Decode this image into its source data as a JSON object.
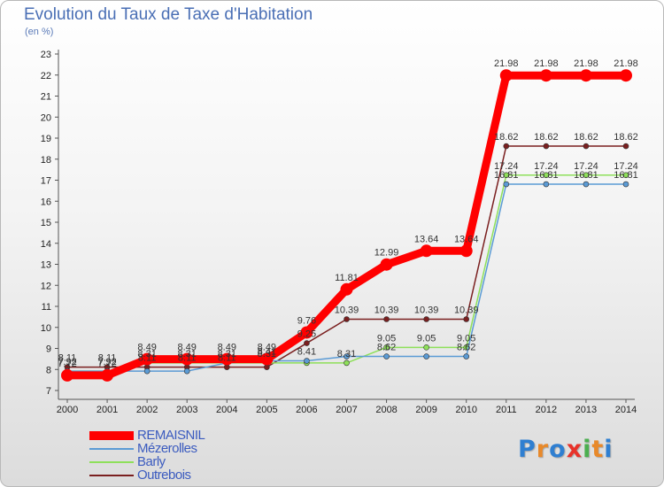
{
  "header": {
    "title": "Evolution du Taux de Taxe d'Habitation",
    "subtitle": "(en %)"
  },
  "chart_data": {
    "type": "line",
    "title": "Evolution du Taux de Taxe d'Habitation",
    "ylabel": "(en %)",
    "xlabel": "",
    "x": [
      "2000",
      "2001",
      "2002",
      "2003",
      "2004",
      "2005",
      "2006",
      "2007",
      "2008",
      "2009",
      "2010",
      "2011",
      "2012",
      "2013",
      "2014"
    ],
    "ylim": [
      7,
      23
    ],
    "yticks": [
      7,
      8,
      9,
      10,
      11,
      12,
      13,
      14,
      15,
      16,
      17,
      18,
      19,
      20,
      21,
      22,
      23
    ],
    "grid": false,
    "legend_position": "bottom-left",
    "series": [
      {
        "name": "REMAISNIL",
        "color": "#ff0000",
        "values": [
          7.72,
          7.72,
          8.49,
          8.49,
          8.49,
          8.49,
          9.76,
          11.81,
          12.99,
          13.64,
          13.64,
          21.98,
          21.98,
          21.98,
          21.98
        ]
      },
      {
        "name": "Mézerolles",
        "color": "#5b9bd5",
        "values": [
          7.92,
          7.92,
          7.92,
          7.92,
          8.31,
          8.41,
          8.41,
          8.62,
          8.62,
          8.62,
          8.62,
          16.81,
          16.81,
          16.81,
          16.81
        ]
      },
      {
        "name": "Barly",
        "color": "#8ee05a",
        "values": [
          7.92,
          7.92,
          8.31,
          8.31,
          8.31,
          8.31,
          8.31,
          8.31,
          9.05,
          9.05,
          9.05,
          17.24,
          17.24,
          17.24,
          17.24
        ]
      },
      {
        "name": "Outrebois",
        "color": "#7a1f1f",
        "values": [
          8.11,
          8.11,
          8.11,
          8.11,
          8.11,
          8.11,
          9.25,
          10.39,
          10.39,
          10.39,
          10.39,
          18.62,
          18.62,
          18.62,
          18.62
        ]
      }
    ],
    "data_labels": [
      {
        "series": 0,
        "labels": [
          "7.72",
          "7.72",
          "8.49",
          "8.49",
          "8.49",
          "8.49",
          "9.76",
          "11.81",
          "12.99",
          "13.64",
          "13.64",
          "21.98",
          "21.98",
          "21.98",
          "21.98"
        ]
      },
      {
        "series": 1,
        "labels": [
          "7.92",
          "7.92",
          "",
          "",
          "",
          "8.41",
          "8.41",
          "",
          "8.62",
          "",
          "8.62",
          "16.81",
          "16.81",
          "16.81",
          "16.81"
        ]
      },
      {
        "series": 2,
        "labels": [
          "",
          "",
          "8.31",
          "8.31",
          "8.31",
          "8.31",
          "",
          "8.31",
          "9.05",
          "9.05",
          "9.05",
          "17.24",
          "17.24",
          "17.24",
          "17.24"
        ]
      },
      {
        "series": 3,
        "labels": [
          "8.11",
          "8.11",
          "8.11",
          "8.11",
          "8.11",
          "",
          "9.25",
          "10.39",
          "10.39",
          "10.39",
          "10.39",
          "18.62",
          "18.62",
          "18.62",
          "18.62"
        ]
      }
    ]
  },
  "legend": {
    "items": [
      {
        "label": "REMAISNIL",
        "color": "#ff0000"
      },
      {
        "label": "Mézerolles",
        "color": "#5b9bd5"
      },
      {
        "label": "Barly",
        "color": "#8ee05a"
      },
      {
        "label": "Outrebois",
        "color": "#7a1f1f"
      }
    ]
  },
  "logo": {
    "text": "Proxiti",
    "letters": [
      "P",
      "r",
      "o",
      "x",
      "i",
      "t",
      "i"
    ],
    "colors": [
      "#2f7fd1",
      "#e8892a",
      "#2f7fd1",
      "#e8322a",
      "#4caf50",
      "#e8892a",
      "#2f7fd1"
    ]
  }
}
